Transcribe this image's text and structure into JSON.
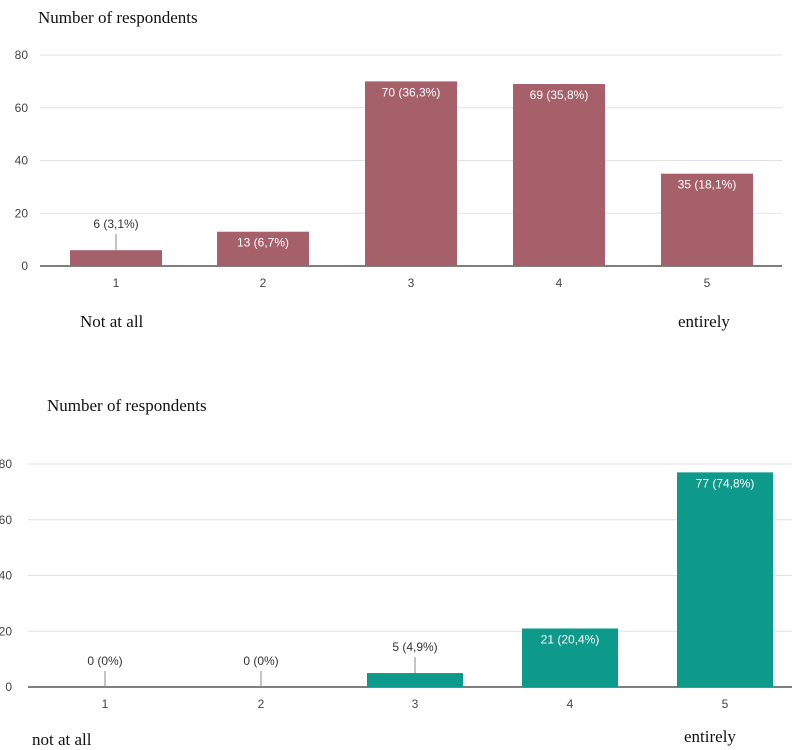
{
  "chart_data": [
    {
      "type": "bar",
      "title": "Number of respondents",
      "categories": [
        "1",
        "2",
        "3",
        "4",
        "5"
      ],
      "values": [
        6,
        13,
        70,
        69,
        35
      ],
      "data_labels": [
        "6 (3,1%)",
        "13 (6,7%)",
        "70 (36,3%)",
        "69 (35,8%)",
        "35 (18,1%)"
      ],
      "yticks": [
        "0",
        "20",
        "40",
        "60",
        "80"
      ],
      "ylim": [
        0,
        80
      ],
      "grid": true,
      "bar_color": "#a5606a",
      "scale_min_label": "Not at all",
      "scale_max_label": "entirely"
    },
    {
      "type": "bar",
      "title": "Number of respondents",
      "categories": [
        "1",
        "2",
        "3",
        "4",
        "5"
      ],
      "values": [
        0,
        0,
        5,
        21,
        77
      ],
      "data_labels": [
        "0 (0%)",
        "0 (0%)",
        "5 (4,9%)",
        "21 (20,4%)",
        "77 (74,8%)"
      ],
      "yticks": [
        "0",
        "20",
        "40",
        "60",
        "80"
      ],
      "ylim": [
        0,
        80
      ],
      "grid": true,
      "bar_color": "#0e9a8a",
      "scale_min_label": "not at all",
      "scale_max_label": "entirely"
    }
  ]
}
